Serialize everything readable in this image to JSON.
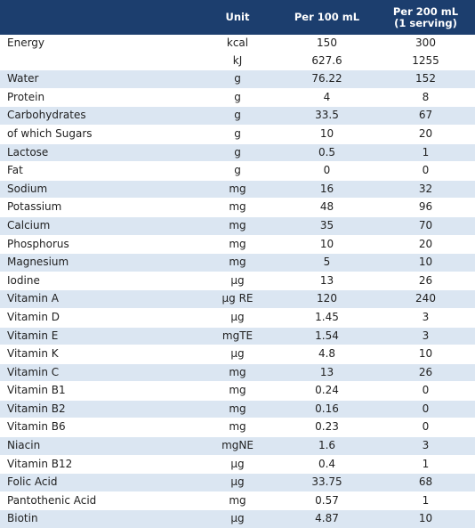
{
  "headers": {
    "name": "",
    "unit": "Unit",
    "per100_line1": "Per 100 mL",
    "per200_line1": "Per 200 mL",
    "per200_line2": "(1 serving)"
  },
  "rows": [
    {
      "name": "Energy",
      "unit": "kcal",
      "p100": "150",
      "p200": "300"
    },
    {
      "name": "",
      "unit": "kJ",
      "p100": "627.6",
      "p200": "1255"
    },
    {
      "name": "Water",
      "unit": "g",
      "p100": "76.22",
      "p200": "152"
    },
    {
      "name": "Protein",
      "unit": "g",
      "p100": "4",
      "p200": "8"
    },
    {
      "name": "Carbohydrates",
      "unit": "g",
      "p100": "33.5",
      "p200": "67"
    },
    {
      "name": "of which Sugars",
      "unit": "g",
      "p100": "10",
      "p200": "20"
    },
    {
      "name": "Lactose",
      "unit": "g",
      "p100": "0.5",
      "p200": "1"
    },
    {
      "name": "Fat",
      "unit": "g",
      "p100": "0",
      "p200": "0"
    },
    {
      "name": "Sodium",
      "unit": "mg",
      "p100": "16",
      "p200": "32"
    },
    {
      "name": "Potassium",
      "unit": "mg",
      "p100": "48",
      "p200": "96"
    },
    {
      "name": "Calcium",
      "unit": "mg",
      "p100": "35",
      "p200": "70"
    },
    {
      "name": "Phosphorus",
      "unit": "mg",
      "p100": "10",
      "p200": "20"
    },
    {
      "name": "Magnesium",
      "unit": "mg",
      "p100": "5",
      "p200": "10"
    },
    {
      "name": "Iodine",
      "unit": "µg",
      "p100": "13",
      "p200": "26"
    },
    {
      "name": "Vitamin A",
      "unit": "µg RE",
      "p100": "120",
      "p200": "240"
    },
    {
      "name": "Vitamin D",
      "unit": "µg",
      "p100": "1.45",
      "p200": "3"
    },
    {
      "name": "Vitamin E",
      "unit": "mgTE",
      "p100": "1.54",
      "p200": "3"
    },
    {
      "name": "Vitamin K",
      "unit": "µg",
      "p100": "4.8",
      "p200": "10"
    },
    {
      "name": "Vitamin C",
      "unit": "mg",
      "p100": "13",
      "p200": "26"
    },
    {
      "name": "Vitamin B1",
      "unit": "mg",
      "p100": "0.24",
      "p200": "0"
    },
    {
      "name": "Vitamin B2",
      "unit": "mg",
      "p100": "0.16",
      "p200": "0"
    },
    {
      "name": "Vitamin B6",
      "unit": "mg",
      "p100": "0.23",
      "p200": "0"
    },
    {
      "name": "Niacin",
      "unit": "mgNE",
      "p100": "1.6",
      "p200": "3"
    },
    {
      "name": "Vitamin B12",
      "unit": "µg",
      "p100": "0.4",
      "p200": "1"
    },
    {
      "name": "Folic Acid",
      "unit": "µg",
      "p100": "33.75",
      "p200": "68"
    },
    {
      "name": "Pantothenic Acid",
      "unit": "mg",
      "p100": "0.57",
      "p200": "1"
    },
    {
      "name": "Biotin",
      "unit": "µg",
      "p100": "4.87",
      "p200": "10"
    }
  ],
  "colors": {
    "header_bg": "#1c3e6e",
    "header_text": "#ffffff",
    "row_shade": "#dbe6f2",
    "row_plain": "#ffffff",
    "text": "#1f1f1f"
  }
}
